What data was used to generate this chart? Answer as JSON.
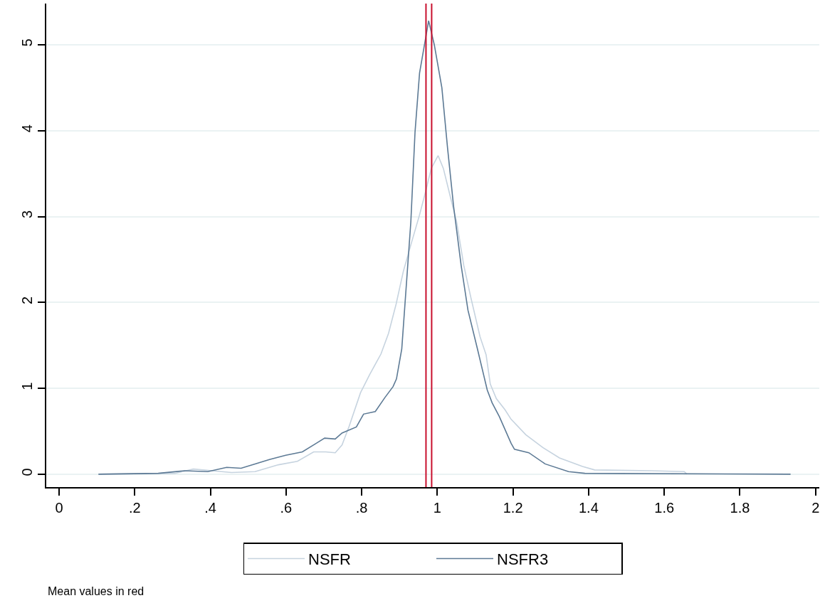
{
  "chart_data": {
    "type": "line",
    "x": [
      0.104,
      0.262,
      0.331,
      0.393,
      0.443,
      0.481,
      0.518,
      0.556,
      0.599,
      0.643,
      0.68,
      0.702,
      0.73,
      0.748,
      0.786,
      0.805,
      0.836,
      0.861,
      0.883,
      0.892,
      0.906,
      0.919,
      0.93,
      0.941,
      0.953,
      0.977,
      0.992,
      1.012,
      1.027,
      1.043,
      1.063,
      1.081,
      1.106,
      1.132,
      1.145,
      1.164,
      1.195,
      1.204,
      1.242,
      1.285,
      1.347,
      1.39,
      1.934
    ],
    "series": [
      {
        "name": "NSFR",
        "color": "#c6d3df",
        "x": [
          0.104,
          0.306,
          0.355,
          0.456,
          0.518,
          0.58,
          0.63,
          0.673,
          0.705,
          0.73,
          0.748,
          0.767,
          0.797,
          0.821,
          0.851,
          0.871,
          0.891,
          0.91,
          0.93,
          0.953,
          0.969,
          0.984,
          1.002,
          1.016,
          1.035,
          1.051,
          1.07,
          1.089,
          1.113,
          1.129,
          1.14,
          1.156,
          1.179,
          1.195,
          1.234,
          1.279,
          1.323,
          1.384,
          1.416,
          1.566,
          1.653,
          1.66
        ],
        "values": [
          0,
          0.01,
          0.06,
          0.02,
          0.03,
          0.11,
          0.15,
          0.26,
          0.26,
          0.25,
          0.34,
          0.56,
          0.95,
          1.16,
          1.4,
          1.64,
          1.98,
          2.36,
          2.67,
          3.02,
          3.29,
          3.56,
          3.71,
          3.56,
          3.22,
          2.94,
          2.43,
          2.05,
          1.6,
          1.39,
          1.05,
          0.88,
          0.75,
          0.64,
          0.46,
          0.31,
          0.19,
          0.09,
          0.05,
          0.04,
          0.03,
          0
        ]
      },
      {
        "name": "NSFR3",
        "color": "#5d7a95",
        "values": [
          0,
          0.01,
          0.04,
          0.03,
          0.08,
          0.07,
          0.12,
          0.17,
          0.22,
          0.26,
          0.36,
          0.42,
          0.41,
          0.48,
          0.55,
          0.7,
          0.73,
          0.89,
          1.02,
          1.11,
          1.46,
          2.26,
          2.94,
          3.98,
          4.67,
          5.28,
          5.0,
          4.5,
          3.8,
          3.12,
          2.43,
          1.91,
          1.46,
          0.98,
          0.83,
          0.67,
          0.36,
          0.29,
          0.25,
          0.12,
          0.03,
          0.01,
          0
        ]
      }
    ],
    "xlim": [
      -0.034,
      2.01
    ],
    "ylim": [
      -0.15,
      5.48
    ],
    "xticks": [
      0,
      {
        "value": 0.2,
        "label": ".2"
      },
      {
        "value": 0.4,
        "label": ".4"
      },
      {
        "value": 0.6,
        "label": ".6"
      },
      {
        "value": 0.8,
        "label": ".8"
      },
      1,
      1.2,
      1.4,
      1.6,
      1.8,
      2
    ],
    "yticks": [
      0,
      1,
      2,
      3,
      4,
      5
    ],
    "ref_lines": [
      {
        "axis": "x",
        "value": 0.97,
        "color": "#c8102e"
      },
      {
        "axis": "x",
        "value": 0.985,
        "color": "#c8102e"
      }
    ],
    "annotations": [
      "Mean values in red"
    ],
    "grid": "y",
    "legend": "bottom",
    "marker": "none",
    "line_style": "solid"
  }
}
